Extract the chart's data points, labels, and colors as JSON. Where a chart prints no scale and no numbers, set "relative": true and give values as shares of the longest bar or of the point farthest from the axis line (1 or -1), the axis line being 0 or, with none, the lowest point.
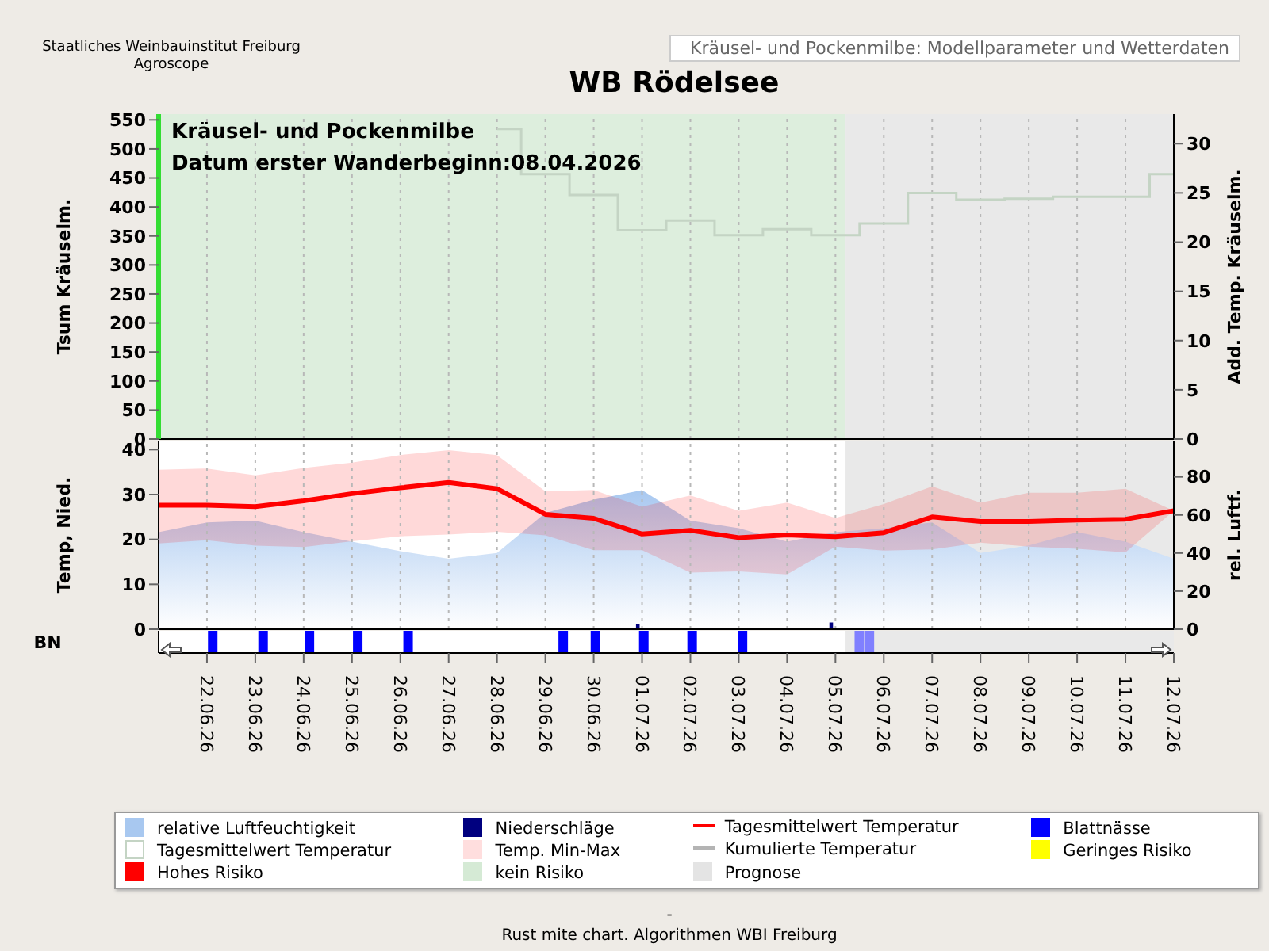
{
  "chart_data": [
    {
      "type": "step",
      "title": "WB Rödelsee",
      "subtitle": "Kräusel- und Pockenmilbe: Modellparameter und Wetterdaten",
      "ylabel": "Tsum Kräuselm.",
      "y2label": "Add. Temp. Kräuselm.",
      "legend": "bottom",
      "annotations": [
        "Kräusel- und Pockenmilbe",
        "Datum  erster Wanderbeginn:08.04.2026",
        "Staatliches Weinbauinstitut Freiburg",
        "Agroscope",
        "-",
        "Rust mite chart. Algorithmen WBI Freiburg"
      ],
      "xlim": [
        "2026-06-21",
        "2026-07-12"
      ],
      "xticks": [
        {
          "value": "2026-06-22",
          "label": null
        },
        {
          "value": "2026-06-23",
          "label": null
        },
        {
          "value": "2026-06-24",
          "label": null
        },
        {
          "value": "2026-06-25",
          "label": null
        },
        {
          "value": "2026-06-26",
          "label": null
        },
        {
          "value": "2026-06-27",
          "label": null
        },
        {
          "value": "2026-06-28",
          "label": null
        },
        {
          "value": "2026-06-29",
          "label": null
        },
        {
          "value": "2026-06-30",
          "label": null
        },
        {
          "value": "2026-07-01",
          "label": null
        },
        {
          "value": "2026-07-02",
          "label": null
        },
        {
          "value": "2026-07-03",
          "label": null
        },
        {
          "value": "2026-07-04",
          "label": null
        },
        {
          "value": "2026-07-05",
          "label": null
        },
        {
          "value": "2026-07-06",
          "label": null
        },
        {
          "value": "2026-07-07",
          "label": null
        },
        {
          "value": "2026-07-08",
          "label": null
        },
        {
          "value": "2026-07-09",
          "label": null
        },
        {
          "value": "2026-07-10",
          "label": null
        },
        {
          "value": "2026-07-11",
          "label": null
        },
        {
          "value": "2026-07-12",
          "label": null
        }
      ],
      "ylim": [
        0,
        560
      ],
      "yticks": [
        0,
        50,
        100,
        150,
        200,
        250,
        300,
        350,
        400,
        450,
        500,
        550
      ],
      "y2lim": [
        0,
        33
      ],
      "y2ticks": [
        0,
        5,
        10,
        15,
        20,
        25,
        30
      ],
      "tick_labels": "y",
      "grid": "x",
      "series": [
        {
          "name": "Tagesmittelwert Temperatur",
          "axis": "y2",
          "color": "#c4d4c4",
          "x": [
            "2026-06-28",
            "2026-06-29",
            "2026-06-30",
            "2026-07-01",
            "2026-07-02",
            "2026-07-03",
            "2026-07-04",
            "2026-07-05",
            "2026-07-06",
            "2026-07-07",
            "2026-07-08",
            "2026-07-09",
            "2026-07-10",
            "2026-07-11",
            "2026-07-12"
          ],
          "values": [
            31.5,
            26.9,
            24.8,
            21.2,
            22.2,
            20.7,
            21.3,
            20.7,
            21.9,
            25,
            24.3,
            24.4,
            24.6,
            24.6,
            26.9
          ]
        },
        {
          "name": "Temp. Min-Max",
          "type": "area",
          "color": "#ffdede"
        },
        {
          "name": "Kumulierte Temperatur",
          "type": "line",
          "color": "#b4b4b4"
        },
        {
          "name": "Geringes Risiko",
          "type": "bar",
          "color": "#ffff00"
        },
        {
          "name": "Hohes Risiko",
          "type": "bar",
          "color": "#ff0000"
        }
      ],
      "bands": [
        {
          "axis": "x",
          "from": "2026-06-21",
          "to": "2026-07-05T05:00",
          "label": "kein Risiko",
          "color": "#d5ead5"
        },
        {
          "axis": "x",
          "from": "2026-07-05T05:00",
          "to": "2026-07-12",
          "label": "Prognose",
          "color": "#e4e4e4"
        }
      ]
    },
    {
      "type": "line",
      "ylabel": "Temp, Nied.",
      "y2label": "rel. Luftf.",
      "legend": "bottom",
      "x": [
        "2026-06-21",
        "2026-06-22",
        "2026-06-23",
        "2026-06-24",
        "2026-06-25",
        "2026-06-26",
        "2026-06-27",
        "2026-06-28",
        "2026-06-29",
        "2026-06-30",
        "2026-07-01",
        "2026-07-02",
        "2026-07-03",
        "2026-07-04",
        "2026-07-05",
        "2026-07-06",
        "2026-07-07",
        "2026-07-08",
        "2026-07-09",
        "2026-07-10",
        "2026-07-11",
        "2026-07-12"
      ],
      "xlim": [
        "2026-06-21",
        "2026-07-12"
      ],
      "xticks": [
        {
          "value": "2026-06-22",
          "label": null
        },
        {
          "value": "2026-06-23",
          "label": null
        },
        {
          "value": "2026-06-24",
          "label": null
        },
        {
          "value": "2026-06-25",
          "label": null
        },
        {
          "value": "2026-06-26",
          "label": null
        },
        {
          "value": "2026-06-27",
          "label": null
        },
        {
          "value": "2026-06-28",
          "label": null
        },
        {
          "value": "2026-06-29",
          "label": null
        },
        {
          "value": "2026-06-30",
          "label": null
        },
        {
          "value": "2026-07-01",
          "label": null
        },
        {
          "value": "2026-07-02",
          "label": null
        },
        {
          "value": "2026-07-03",
          "label": null
        },
        {
          "value": "2026-07-04",
          "label": null
        },
        {
          "value": "2026-07-05",
          "label": null
        },
        {
          "value": "2026-07-06",
          "label": null
        },
        {
          "value": "2026-07-07",
          "label": null
        },
        {
          "value": "2026-07-08",
          "label": null
        },
        {
          "value": "2026-07-09",
          "label": null
        },
        {
          "value": "2026-07-10",
          "label": null
        },
        {
          "value": "2026-07-11",
          "label": null
        },
        {
          "value": "2026-07-12",
          "label": null
        }
      ],
      "ylim": [
        0,
        42
      ],
      "yticks": [
        0,
        10,
        20,
        30,
        40
      ],
      "y2lim": [
        0,
        99
      ],
      "y2ticks": [
        0,
        20,
        40,
        60,
        80
      ],
      "tick_labels": "y",
      "grid": "x",
      "series": [
        {
          "name": "relative Luftfeuchtigkeit",
          "type": "area",
          "axis": "y2",
          "color": "#a8c8f0",
          "values": [
            51,
            56,
            57,
            51,
            46,
            41,
            37,
            40,
            61,
            68,
            73,
            57,
            53,
            46,
            51,
            53,
            56,
            40,
            44,
            51,
            46,
            37
          ]
        },
        {
          "name": "Niederschläge",
          "type": "bar",
          "color": "#00007f",
          "x": [
            "2026-06-30T22:00",
            "2026-07-04T22:00"
          ],
          "values": [
            1.2,
            1.5
          ]
        },
        {
          "name": "Tagesmittelwert Temperatur",
          "color": "#ff0000",
          "values": [
            27.6,
            27.6,
            27.3,
            28.6,
            30.2,
            31.5,
            32.7,
            31.3,
            25.6,
            24.7,
            21.2,
            22,
            20.4,
            21,
            20.6,
            21.5,
            25,
            24,
            24,
            24.3,
            24.5,
            26.4
          ],
          "lower": [
            19.1,
            19.8,
            18.6,
            18.3,
            19.6,
            20.7,
            21.1,
            21.7,
            20.9,
            17.6,
            17.6,
            12.6,
            12.9,
            12.2,
            18.4,
            17.5,
            17.8,
            19.3,
            18.4,
            17.9,
            17.1,
            26.4
          ],
          "upper": [
            35.5,
            35.8,
            34.3,
            35.9,
            37.1,
            38.8,
            39.9,
            38.8,
            30.7,
            31,
            27.3,
            29.8,
            26.4,
            28.2,
            24.8,
            27.9,
            31.8,
            28.2,
            30.4,
            30.4,
            31.3,
            26.4
          ]
        }
      ],
      "bands": [
        {
          "axis": "x",
          "from": "2026-07-05T05:00",
          "to": "2026-07-12",
          "color": "#e4e4e4"
        }
      ]
    },
    {
      "type": "bar",
      "ylabel": "BN",
      "relative": true,
      "legend": "bottom",
      "x": [
        "2026-06-22T03:00",
        "2026-06-23T04:00",
        "2026-06-24T03:00",
        "2026-06-25T03:00",
        "2026-06-26T04:00",
        "2026-06-29T09:00",
        "2026-06-30T01:00",
        "2026-07-01T01:00",
        "2026-07-02T01:00",
        "2026-07-03T02:00",
        "2026-07-05T12:00",
        "2026-07-05T17:00"
      ],
      "xlim": [
        "2026-06-21",
        "2026-07-12"
      ],
      "xticks": [
        {
          "value": "2026-06-22",
          "label": "22.06.26"
        },
        {
          "value": "2026-06-23",
          "label": "23.06.26"
        },
        {
          "value": "2026-06-24",
          "label": "24.06.26"
        },
        {
          "value": "2026-06-25",
          "label": "25.06.26"
        },
        {
          "value": "2026-06-26",
          "label": "26.06.26"
        },
        {
          "value": "2026-06-27",
          "label": "27.06.26"
        },
        {
          "value": "2026-06-28",
          "label": "28.06.26"
        },
        {
          "value": "2026-06-29",
          "label": "29.06.26"
        },
        {
          "value": "2026-06-30",
          "label": "30.06.26"
        },
        {
          "value": "2026-07-01",
          "label": "01.07.26"
        },
        {
          "value": "2026-07-02",
          "label": "02.07.26"
        },
        {
          "value": "2026-07-03",
          "label": "03.07.26"
        },
        {
          "value": "2026-07-04",
          "label": "04.07.26"
        },
        {
          "value": "2026-07-05",
          "label": "05.07.26"
        },
        {
          "value": "2026-07-06",
          "label": "06.07.26"
        },
        {
          "value": "2026-07-07",
          "label": "07.07.26"
        },
        {
          "value": "2026-07-08",
          "label": "08.07.26"
        },
        {
          "value": "2026-07-09",
          "label": "09.07.26"
        },
        {
          "value": "2026-07-10",
          "label": "10.07.26"
        },
        {
          "value": "2026-07-11",
          "label": "11.07.26"
        },
        {
          "value": "2026-07-12",
          "label": "12.07.26"
        }
      ],
      "series": [
        {
          "name": "Blattnässe",
          "color": "#0000ff",
          "colors": [
            "#0000ff",
            "#0000ff",
            "#0000ff",
            "#0000ff",
            "#0000ff",
            "#0000ff",
            "#0000ff",
            "#0000ff",
            "#0000ff",
            "#0000ff",
            "#8080ff",
            "#8080ff"
          ],
          "values": [
            1,
            1,
            1,
            1,
            1,
            1,
            1,
            1,
            1,
            1,
            1,
            1
          ]
        }
      ],
      "bands": [
        {
          "axis": "x",
          "from": "2026-07-05T05:00",
          "to": "2026-07-12",
          "color": "#e4e4e4"
        }
      ]
    }
  ]
}
